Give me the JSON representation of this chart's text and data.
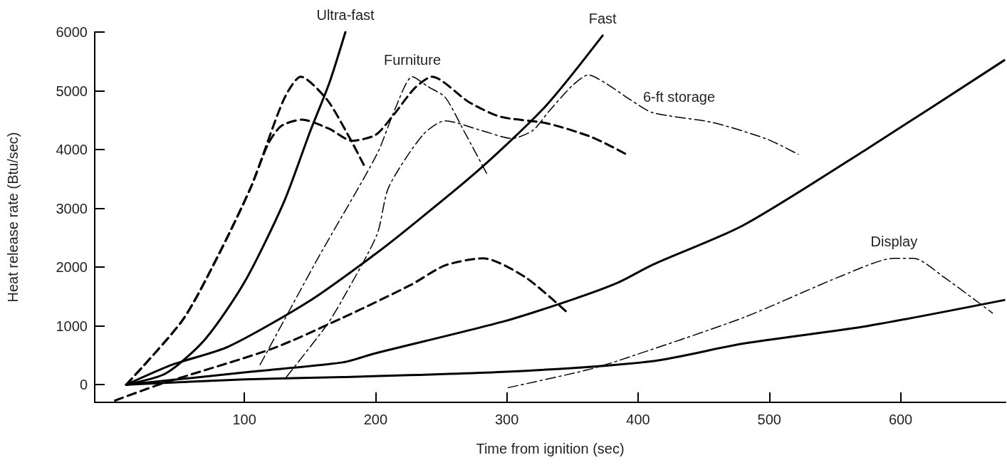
{
  "chart_data": {
    "type": "line",
    "xlabel": "Time from ignition (sec)",
    "ylabel": "Heat release rate (Btu/sec)",
    "xlim": [
      -14,
      680
    ],
    "xticks": [
      100,
      200,
      300,
      400,
      500,
      600
    ],
    "ylim": [
      -300,
      6000
    ],
    "yticks": [
      0,
      1000,
      2000,
      3000,
      4000,
      5000,
      6000
    ],
    "grid": false,
    "legend": false,
    "marker": "none",
    "series": [
      {
        "name": "Ultra-fast",
        "color": "#000000",
        "line_style": "solid",
        "x": [
          10,
          40,
          70,
          100,
          130,
          150,
          165,
          177
        ],
        "values": [
          0,
          190,
          770,
          1740,
          3100,
          4300,
          5150,
          6000
        ]
      },
      {
        "name": "Fast",
        "color": "#000000",
        "line_style": "solid",
        "x": [
          10,
          45,
          88,
          150,
          199,
          227,
          280,
          330,
          373
        ],
        "values": [
          0,
          340,
          650,
          1430,
          2210,
          2700,
          3680,
          4750,
          5940
        ]
      },
      {
        "color": "#000000",
        "line_style": "solid",
        "x": [
          10,
          105,
          175,
          199,
          298,
          350,
          385,
          411,
          480,
          575,
          679
        ],
        "values": [
          0,
          220,
          380,
          530,
          1080,
          1450,
          1740,
          2040,
          2710,
          4020,
          5520
        ]
      },
      {
        "color": "#000000",
        "line_style": "solid",
        "x": [
          10,
          100,
          175,
          300,
          411,
          480,
          575,
          679
        ],
        "values": [
          0,
          90,
          130,
          220,
          400,
          700,
          1000,
          1440
        ]
      },
      {
        "color": "#000000",
        "line_style": "dashed",
        "x": [
          10,
          53,
          79,
          105,
          130,
          143,
          163,
          180,
          191
        ],
        "values": [
          0,
          1100,
          2150,
          3360,
          4850,
          5240,
          4850,
          4210,
          3740
        ]
      },
      {
        "color": "#000000",
        "line_style": "dashed",
        "x": [
          10,
          53,
          79,
          105,
          118,
          128,
          144,
          165,
          182,
          200,
          213,
          230,
          243,
          271,
          295,
          330,
          365,
          391
        ],
        "values": [
          0,
          1100,
          2150,
          3360,
          4090,
          4400,
          4510,
          4350,
          4150,
          4250,
          4570,
          5050,
          5240,
          4810,
          4560,
          4450,
          4210,
          3920
        ]
      },
      {
        "color": "#000000",
        "line_style": "dashed",
        "x": [
          1.5,
          36,
          122,
          175,
          227,
          253,
          282,
          314,
          345
        ],
        "values": [
          -270,
          10,
          620,
          1140,
          1700,
          2030,
          2150,
          1830,
          1250
        ]
      },
      {
        "name": "Furniture",
        "color": "#000000",
        "line_style": "dashdot",
        "x": [
          112,
          156,
          201,
          215,
          228,
          240,
          253,
          267,
          285
        ],
        "values": [
          340,
          2150,
          3920,
          4700,
          5240,
          5070,
          4890,
          4330,
          3580
        ]
      },
      {
        "name": "6-ft storage",
        "color": "#000000",
        "line_style": "dashdot",
        "x": [
          132,
          163,
          175,
          201,
          210,
          236,
          253,
          280,
          304,
          320,
          332,
          350,
          362,
          376,
          394,
          411,
          457,
          498,
          522
        ],
        "values": [
          130,
          1020,
          1460,
          2550,
          3360,
          4250,
          4490,
          4330,
          4190,
          4330,
          4650,
          5090,
          5270,
          5120,
          4850,
          4630,
          4460,
          4180,
          3920
        ]
      },
      {
        "name": "Display",
        "color": "#000000",
        "line_style": "dashdot",
        "x": [
          301,
          361,
          385,
          480,
          556,
          595,
          610,
          633,
          670
        ],
        "values": [
          -50,
          250,
          410,
          1140,
          1860,
          2150,
          2150,
          1830,
          1220
        ]
      }
    ]
  }
}
